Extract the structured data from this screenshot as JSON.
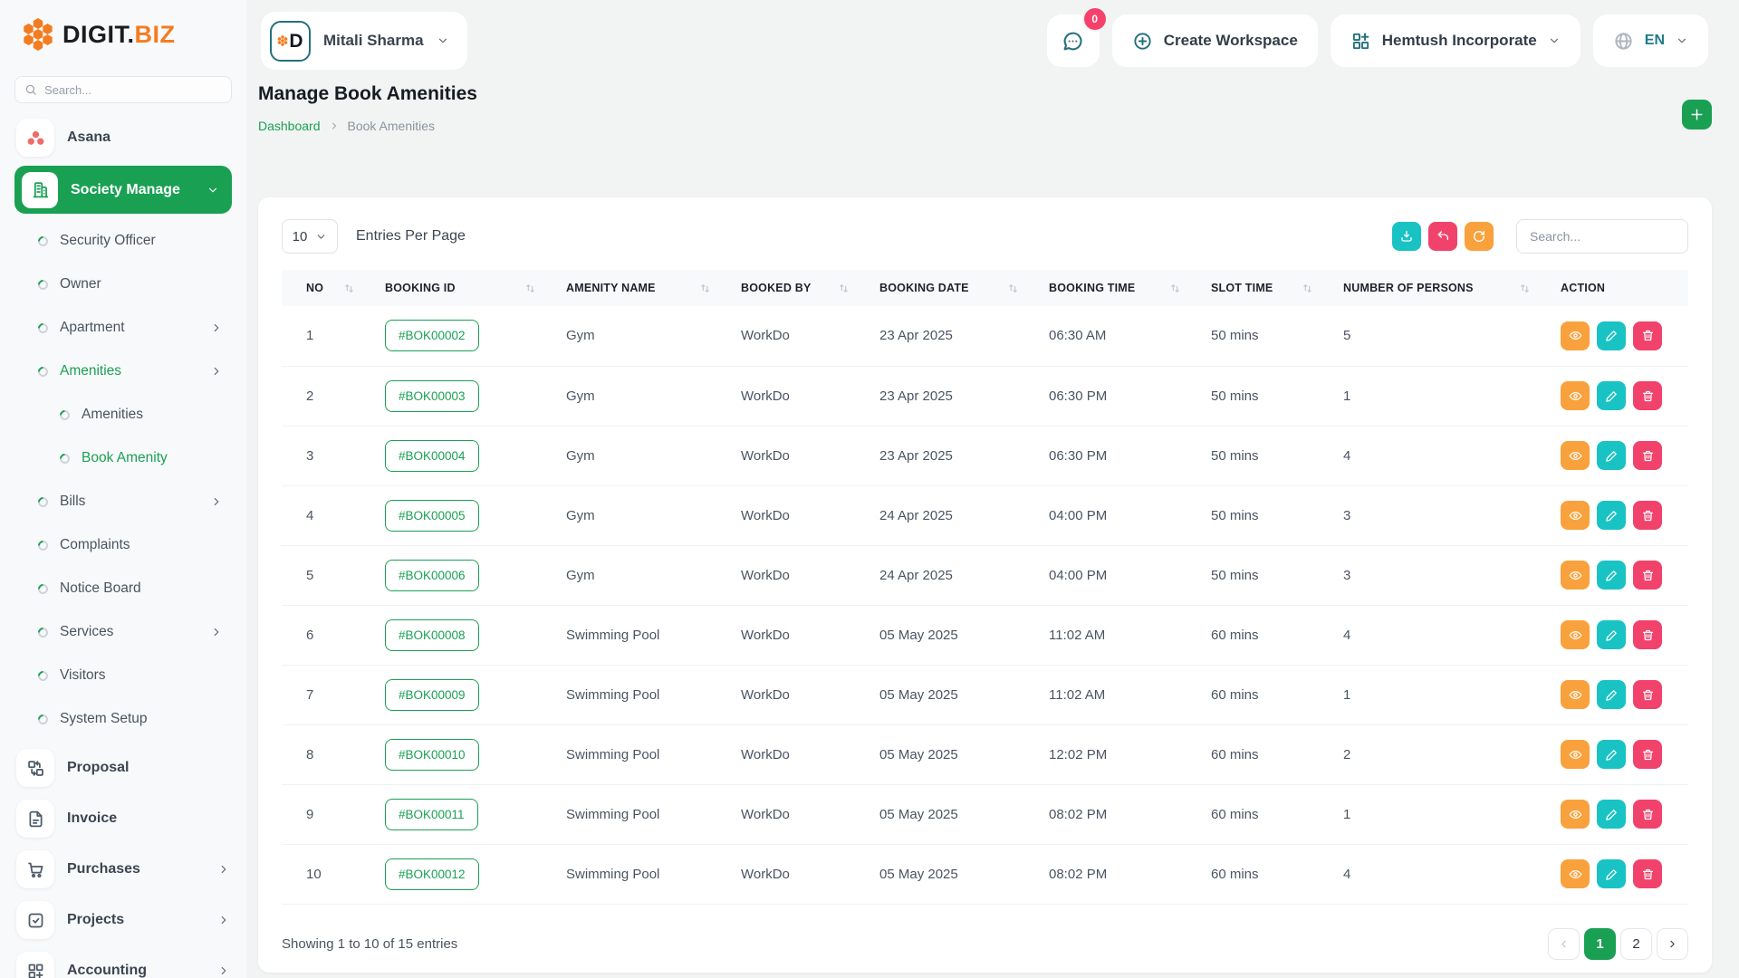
{
  "brand": {
    "name_dark": "DIGIT.",
    "name_accent": "BIZ",
    "avatar_letter": "D"
  },
  "colors": {
    "green": "#1aa053",
    "teal": "#19c3c3",
    "dark_teal": "#25707e",
    "pink": "#f1426c",
    "orange": "#f9a13c",
    "logo_orange": "#f47c20",
    "badge_red": "#f5416c",
    "asana_red": "#f06a6a"
  },
  "sidebar": {
    "search_placeholder": "Search...",
    "menu": [
      {
        "type": "module",
        "label": "Asana",
        "icon": "asana"
      },
      {
        "type": "module-active",
        "label": "Society Manage",
        "icon": "building",
        "chevron": "down"
      },
      {
        "type": "item",
        "label": "Security Officer"
      },
      {
        "type": "item",
        "label": "Owner"
      },
      {
        "type": "item",
        "label": "Apartment",
        "chevron": "right"
      },
      {
        "type": "item",
        "label": "Amenities",
        "chevron": "right",
        "active": true
      },
      {
        "type": "item",
        "label": "Amenities",
        "sub": true
      },
      {
        "type": "item",
        "label": "Book Amenity",
        "sub": true,
        "active": true
      },
      {
        "type": "item",
        "label": "Bills",
        "chevron": "right"
      },
      {
        "type": "item",
        "label": "Complaints"
      },
      {
        "type": "item",
        "label": "Notice Board"
      },
      {
        "type": "item",
        "label": "Services",
        "chevron": "right"
      },
      {
        "type": "item",
        "label": "Visitors"
      },
      {
        "type": "item",
        "label": "System Setup"
      },
      {
        "type": "module",
        "label": "Proposal",
        "icon": "proposal",
        "spacer": true
      },
      {
        "type": "module",
        "label": "Invoice",
        "icon": "invoice"
      },
      {
        "type": "module",
        "label": "Purchases",
        "icon": "cart",
        "chevron": "right"
      },
      {
        "type": "module",
        "label": "Projects",
        "icon": "projects",
        "chevron": "right"
      },
      {
        "type": "module",
        "label": "Accounting",
        "icon": "accounting",
        "chevron": "right"
      }
    ]
  },
  "header": {
    "user_name": "Mitali Sharma",
    "chat_badge": "0",
    "create_workspace_label": "Create Workspace",
    "workspace_name": "Hemtush Incorporate",
    "language": "EN"
  },
  "page": {
    "title": "Manage Book Amenities",
    "breadcrumb_home": "Dashboard",
    "breadcrumb_current": "Book Amenities"
  },
  "toolbar": {
    "entries_select": "10",
    "entries_label": "Entries Per Page",
    "search_placeholder": "Search..."
  },
  "table": {
    "columns": [
      "NO",
      "BOOKING ID",
      "AMENITY NAME",
      "BOOKED BY",
      "BOOKING DATE",
      "BOOKING TIME",
      "SLOT TIME",
      "NUMBER OF PERSONS",
      "ACTION"
    ],
    "rows": [
      {
        "no": "1",
        "booking_id": "#BOK00002",
        "amenity": "Gym",
        "booked_by": "WorkDo",
        "date": "23 Apr 2025",
        "time": "06:30 AM",
        "slot": "50 mins",
        "persons": "5"
      },
      {
        "no": "2",
        "booking_id": "#BOK00003",
        "amenity": "Gym",
        "booked_by": "WorkDo",
        "date": "23 Apr 2025",
        "time": "06:30 PM",
        "slot": "50 mins",
        "persons": "1"
      },
      {
        "no": "3",
        "booking_id": "#BOK00004",
        "amenity": "Gym",
        "booked_by": "WorkDo",
        "date": "23 Apr 2025",
        "time": "06:30 PM",
        "slot": "50 mins",
        "persons": "4"
      },
      {
        "no": "4",
        "booking_id": "#BOK00005",
        "amenity": "Gym",
        "booked_by": "WorkDo",
        "date": "24 Apr 2025",
        "time": "04:00 PM",
        "slot": "50 mins",
        "persons": "3"
      },
      {
        "no": "5",
        "booking_id": "#BOK00006",
        "amenity": "Gym",
        "booked_by": "WorkDo",
        "date": "24 Apr 2025",
        "time": "04:00 PM",
        "slot": "50 mins",
        "persons": "3"
      },
      {
        "no": "6",
        "booking_id": "#BOK00008",
        "amenity": "Swimming Pool",
        "booked_by": "WorkDo",
        "date": "05 May 2025",
        "time": "11:02 AM",
        "slot": "60 mins",
        "persons": "4"
      },
      {
        "no": "7",
        "booking_id": "#BOK00009",
        "amenity": "Swimming Pool",
        "booked_by": "WorkDo",
        "date": "05 May 2025",
        "time": "11:02 AM",
        "slot": "60 mins",
        "persons": "1"
      },
      {
        "no": "8",
        "booking_id": "#BOK00010",
        "amenity": "Swimming Pool",
        "booked_by": "WorkDo",
        "date": "05 May 2025",
        "time": "12:02 PM",
        "slot": "60 mins",
        "persons": "2"
      },
      {
        "no": "9",
        "booking_id": "#BOK00011",
        "amenity": "Swimming Pool",
        "booked_by": "WorkDo",
        "date": "05 May 2025",
        "time": "08:02 PM",
        "slot": "60 mins",
        "persons": "1"
      },
      {
        "no": "10",
        "booking_id": "#BOK00012",
        "amenity": "Swimming Pool",
        "booked_by": "WorkDo",
        "date": "05 May 2025",
        "time": "08:02 PM",
        "slot": "60 mins",
        "persons": "4"
      }
    ]
  },
  "footer": {
    "showing_text": "Showing 1 to 10 of 15 entries",
    "pages": [
      "1",
      "2"
    ],
    "active_page": "1"
  },
  "icons": {
    "logo": "orange-honeycomb-hexagons",
    "search": "magnifier",
    "asana": "three-dots",
    "building": "building",
    "proposal": "swap-boxes",
    "invoice": "document",
    "cart": "shopping-cart",
    "projects": "checkbox",
    "accounting": "grid-plus",
    "chat": "speech-bubble",
    "plus-circle": "circled-plus",
    "grid-plus-tr": "grid-with-plus",
    "globe": "globe",
    "download": "download-tray",
    "undo": "undo-arrow",
    "refresh": "circular-arrows",
    "eye": "view",
    "pencil": "edit",
    "trash": "delete",
    "sort": "up-down-arrows",
    "plus": "plus",
    "chevron-down": "chevron-down",
    "chevron-right": "chevron-right",
    "chevron-left": "chevron-left"
  }
}
